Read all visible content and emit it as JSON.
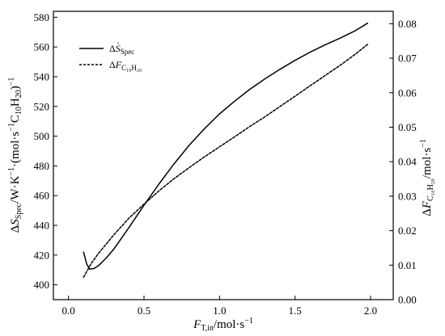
{
  "chart_data": {
    "type": "line",
    "title": "",
    "xlabel": {
      "main": "F",
      "sub": "T,in",
      "unit": "/mol·s",
      "sup": "−1"
    },
    "ylabel_left": {
      "delta": "Δ",
      "main": "S",
      "sub": "Spec",
      "unit_a": "/W·K",
      "sup_a": "−1",
      "unit_b": "·(mol·s",
      "sup_b": "−1",
      "unit_c": "C",
      "sub_c1": "10",
      "unit_d": "H",
      "sub_c2": "20",
      "unit_e": ")",
      "sup_c": "−1"
    },
    "ylabel_right": {
      "delta": "Δ",
      "main": "F",
      "sub": "C₁₀H₂₀",
      "unit": "/mol·s",
      "sup": "−1"
    },
    "xlim": [
      -0.1,
      2.15
    ],
    "ylim_left": [
      390,
      584
    ],
    "ylim_right": [
      0.0,
      0.0836
    ],
    "xticks": [
      0.0,
      0.5,
      1.0,
      1.5,
      2.0
    ],
    "xtick_labels": [
      "0.0",
      "0.5",
      "1.0",
      "1.5",
      "2.0"
    ],
    "yticks_left": [
      400,
      420,
      440,
      460,
      480,
      500,
      520,
      540,
      560,
      580
    ],
    "ytick_labels_left": [
      "400",
      "420",
      "440",
      "460",
      "480",
      "500",
      "520",
      "540",
      "560",
      "580"
    ],
    "yticks_right": [
      0.0,
      0.01,
      0.02,
      0.03,
      0.04,
      0.05,
      0.06,
      0.07,
      0.08
    ],
    "ytick_labels_right": [
      "0.00",
      "0.01",
      "0.02",
      "0.03",
      "0.04",
      "0.05",
      "0.06",
      "0.07",
      "0.08"
    ],
    "grid": false,
    "legend_position": "top-left",
    "series": [
      {
        "name": "ΔṠ_Spec",
        "legend": {
          "delta": "Δ",
          "main": "S",
          "sub": "Spec"
        },
        "axis": "left",
        "style": "solid",
        "x": [
          0.1,
          0.12,
          0.14,
          0.17,
          0.2,
          0.25,
          0.3,
          0.4,
          0.5,
          0.6,
          0.7,
          0.8,
          0.9,
          1.0,
          1.1,
          1.2,
          1.3,
          1.4,
          1.5,
          1.6,
          1.7,
          1.8,
          1.9,
          1.98
        ],
        "y": [
          422,
          414,
          410.5,
          411,
          413,
          418,
          424,
          438.5,
          453.5,
          468,
          481.5,
          494,
          505,
          515,
          523.5,
          531.5,
          538.5,
          545,
          551,
          556.5,
          561.5,
          566,
          571,
          576
        ]
      },
      {
        "name": "ΔF_C10H20",
        "legend": {
          "delta": "Δ",
          "main": "F",
          "sub": "C₁₀H₂₀"
        },
        "axis": "right",
        "style": "dashed",
        "x": [
          0.1,
          0.15,
          0.2,
          0.3,
          0.4,
          0.5,
          0.6,
          0.7,
          0.8,
          0.9,
          1.0,
          1.1,
          1.2,
          1.3,
          1.4,
          1.5,
          1.6,
          1.7,
          1.8,
          1.9,
          1.98
        ],
        "y": [
          0.0065,
          0.0105,
          0.0135,
          0.0188,
          0.0236,
          0.0277,
          0.0316,
          0.0351,
          0.0383,
          0.0414,
          0.0443,
          0.0472,
          0.0502,
          0.053,
          0.056,
          0.059,
          0.062,
          0.065,
          0.068,
          0.0712,
          0.074
        ]
      }
    ]
  }
}
